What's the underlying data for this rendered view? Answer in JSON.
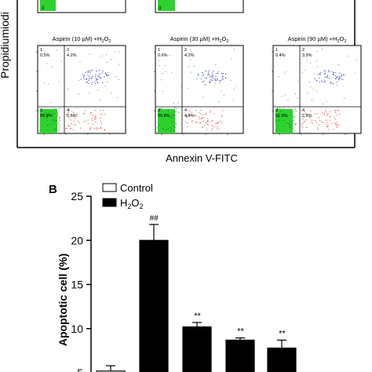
{
  "panel_a": {
    "y_label": "Propidiumiodi",
    "x_label": "Annexin V-FITC",
    "top_row_partial_labels": [
      "3",
      "3"
    ],
    "plots": [
      {
        "title_prefix": "Aspirin (10 µM) +H",
        "title_sub": "2",
        "title_suffix": "O",
        "title_sub2": "2",
        "quadrants": {
          "q1": "1",
          "q1_val": "0.5%",
          "q2": "2",
          "q2_val": "4.2%",
          "q3": "3",
          "q3_val": "89.8%",
          "q4": "4",
          "q4_val": "5.6%"
        }
      },
      {
        "title_prefix": "Aspirin (30 µM) +H",
        "title_sub": "2",
        "title_suffix": "O",
        "title_sub2": "2",
        "quadrants": {
          "q1": "1",
          "q1_val": "0.6%",
          "q2": "2",
          "q2_val": "4.2%",
          "q3": "3",
          "q3_val": "90.8%",
          "q4": "4",
          "q4_val": "4.4%"
        }
      },
      {
        "title_prefix": "Aspirin (90 µM) +H",
        "title_sub": "2",
        "title_suffix": "O",
        "title_sub2": "2",
        "quadrants": {
          "q1": "1",
          "q1_val": "0.4%",
          "q2": "2",
          "q2_val": "3.9%",
          "q3": "3",
          "q3_val": "92.9%",
          "q4": "4",
          "q4_val": "2.8%"
        }
      }
    ],
    "colors": {
      "live": "#2fd12f",
      "early": "#e05050",
      "late": "#3040c8",
      "necrotic": "#555555"
    }
  },
  "panel_b": {
    "panel_letter": "B",
    "legend": {
      "control_label": "Control",
      "h2o2_prefix": "H",
      "h2o2_sub": "2",
      "h2o2_mid": "O",
      "h2o2_sub2": "2"
    },
    "sig_hash": "##",
    "sig_star": "**"
  },
  "chart_data": {
    "type": "bar",
    "ylabel": "Apoptotic cell (%)",
    "ylim": [
      5,
      25
    ],
    "yticks": [
      "25",
      "20",
      "15",
      "10",
      "5"
    ],
    "legend_placement": "top-left",
    "bars": [
      {
        "series": "Control",
        "value": 5.2,
        "error": 0.6,
        "annotation": ""
      },
      {
        "series": "H2O2",
        "value": 20.0,
        "error": 1.8,
        "annotation": "##"
      },
      {
        "series": "H2O2",
        "value": 10.2,
        "error": 0.5,
        "annotation": "**"
      },
      {
        "series": "H2O2",
        "value": 8.7,
        "error": 0.25,
        "annotation": "**"
      },
      {
        "series": "H2O2",
        "value": 7.8,
        "error": 0.9,
        "annotation": "**"
      }
    ],
    "colors": {
      "Control": "#ffffff",
      "H2O2": "#000000"
    }
  }
}
